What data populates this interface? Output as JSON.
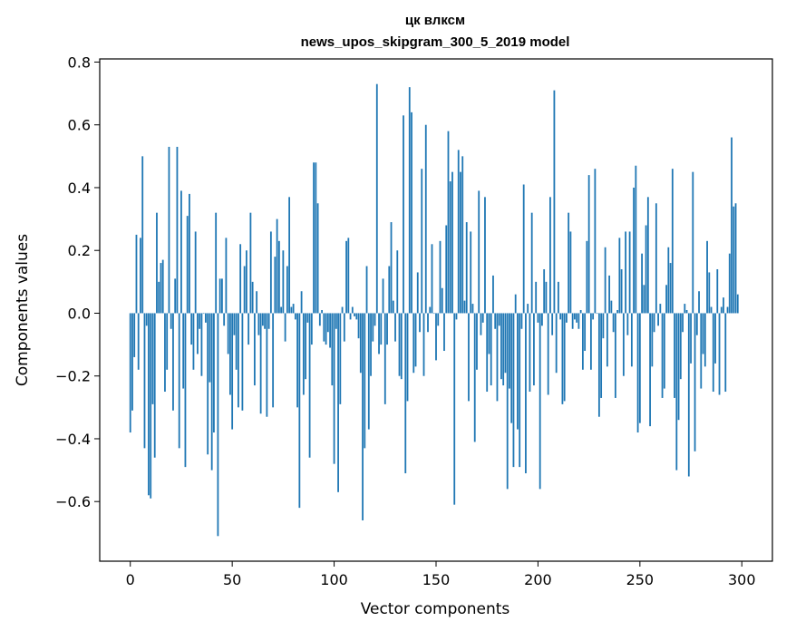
{
  "chart_data": {
    "type": "bar",
    "title": "цк влксм",
    "subtitle": "news_upos_skipgram_300_5_2019 model",
    "xlabel": "Vector components",
    "ylabel": "Components values",
    "xlim": [
      -15,
      315
    ],
    "ylim": [
      -0.79,
      0.81
    ],
    "xticks": [
      0,
      50,
      100,
      150,
      200,
      250,
      300
    ],
    "xtick_labels": [
      "0",
      "50",
      "100",
      "150",
      "200",
      "250",
      "300"
    ],
    "yticks": [
      -0.6,
      -0.4,
      -0.2,
      0.0,
      0.2,
      0.4,
      0.6,
      0.8
    ],
    "ytick_labels": [
      "−0.6",
      "−0.4",
      "−0.2",
      "0.0",
      "0.2",
      "0.4",
      "0.6",
      "0.8"
    ],
    "grid": false,
    "bar_color": "#1f77b4",
    "x": "0..299",
    "values": [
      -0.38,
      -0.31,
      -0.14,
      0.25,
      -0.18,
      0.24,
      0.5,
      -0.43,
      -0.04,
      -0.58,
      -0.59,
      -0.29,
      -0.46,
      0.32,
      0.1,
      0.16,
      0.17,
      -0.25,
      -0.18,
      0.53,
      -0.05,
      -0.31,
      0.11,
      0.53,
      -0.43,
      0.39,
      -0.24,
      -0.49,
      0.31,
      0.38,
      -0.1,
      -0.18,
      0.26,
      -0.13,
      -0.05,
      -0.2,
      0.0,
      -0.03,
      -0.45,
      -0.22,
      -0.5,
      -0.38,
      0.32,
      -0.71,
      0.11,
      0.11,
      -0.04,
      0.24,
      -0.13,
      -0.26,
      -0.37,
      -0.07,
      -0.18,
      -0.3,
      0.22,
      -0.31,
      0.15,
      0.2,
      -0.1,
      0.32,
      0.1,
      -0.23,
      0.07,
      -0.07,
      -0.32,
      -0.04,
      -0.05,
      -0.33,
      -0.05,
      0.26,
      -0.3,
      0.18,
      0.3,
      0.23,
      0.02,
      0.2,
      -0.09,
      0.15,
      0.37,
      0.02,
      0.03,
      -0.02,
      -0.3,
      -0.62,
      0.07,
      -0.26,
      -0.21,
      -0.03,
      -0.46,
      -0.1,
      0.48,
      0.48,
      0.35,
      -0.04,
      0.01,
      -0.09,
      -0.1,
      -0.06,
      -0.11,
      -0.23,
      -0.48,
      -0.05,
      -0.57,
      -0.29,
      0.02,
      -0.09,
      0.23,
      0.24,
      -0.02,
      0.02,
      -0.01,
      -0.02,
      -0.08,
      -0.19,
      -0.66,
      -0.43,
      0.15,
      -0.37,
      -0.2,
      -0.09,
      -0.04,
      0.73,
      -0.13,
      -0.1,
      0.11,
      -0.29,
      -0.1,
      0.15,
      0.29,
      0.04,
      -0.09,
      0.2,
      -0.2,
      -0.21,
      0.63,
      -0.51,
      -0.28,
      0.72,
      0.64,
      -0.19,
      -0.17,
      0.13,
      -0.06,
      0.46,
      -0.2,
      0.6,
      -0.06,
      0.02,
      0.22,
      0.0,
      -0.15,
      -0.04,
      0.23,
      0.08,
      -0.12,
      0.28,
      0.58,
      0.42,
      0.45,
      -0.61,
      -0.02,
      0.52,
      0.45,
      0.5,
      0.04,
      0.29,
      -0.28,
      0.26,
      0.03,
      -0.41,
      -0.18,
      0.39,
      -0.07,
      -0.03,
      0.37,
      -0.25,
      -0.13,
      -0.23,
      0.12,
      -0.05,
      -0.28,
      -0.04,
      -0.21,
      -0.23,
      -0.19,
      -0.56,
      -0.24,
      -0.35,
      -0.49,
      0.06,
      -0.37,
      -0.49,
      -0.05,
      0.41,
      -0.51,
      0.03,
      -0.25,
      0.32,
      -0.23,
      0.1,
      -0.03,
      -0.56,
      -0.04,
      0.14,
      0.1,
      -0.26,
      0.37,
      -0.07,
      0.71,
      -0.19,
      0.1,
      -0.02,
      -0.29,
      -0.28,
      -0.03,
      0.32,
      0.26,
      -0.05,
      -0.02,
      -0.03,
      -0.05,
      0.01,
      -0.18,
      -0.12,
      0.23,
      0.44,
      -0.18,
      -0.02,
      0.46,
      0.0,
      -0.33,
      -0.27,
      -0.08,
      0.21,
      -0.17,
      0.12,
      0.04,
      -0.06,
      -0.27,
      0.01,
      0.24,
      0.14,
      -0.2,
      0.26,
      -0.07,
      0.26,
      -0.17,
      0.4,
      0.47,
      -0.38,
      -0.35,
      0.19,
      0.09,
      0.28,
      0.37,
      -0.36,
      -0.17,
      -0.06,
      0.35,
      -0.04,
      0.03,
      -0.27,
      -0.24,
      0.09,
      0.21,
      0.16,
      0.46,
      -0.27,
      -0.5,
      -0.34,
      -0.21,
      -0.06,
      0.03,
      0.01,
      -0.52,
      -0.16,
      0.45,
      -0.44,
      -0.07,
      0.07,
      -0.24,
      -0.13,
      -0.17,
      0.23,
      0.13,
      0.02,
      -0.25,
      -0.16,
      0.14,
      -0.26,
      0.02,
      0.05,
      -0.25,
      0.02,
      0.19,
      0.56,
      0.34,
      0.35,
      0.06
    ]
  }
}
